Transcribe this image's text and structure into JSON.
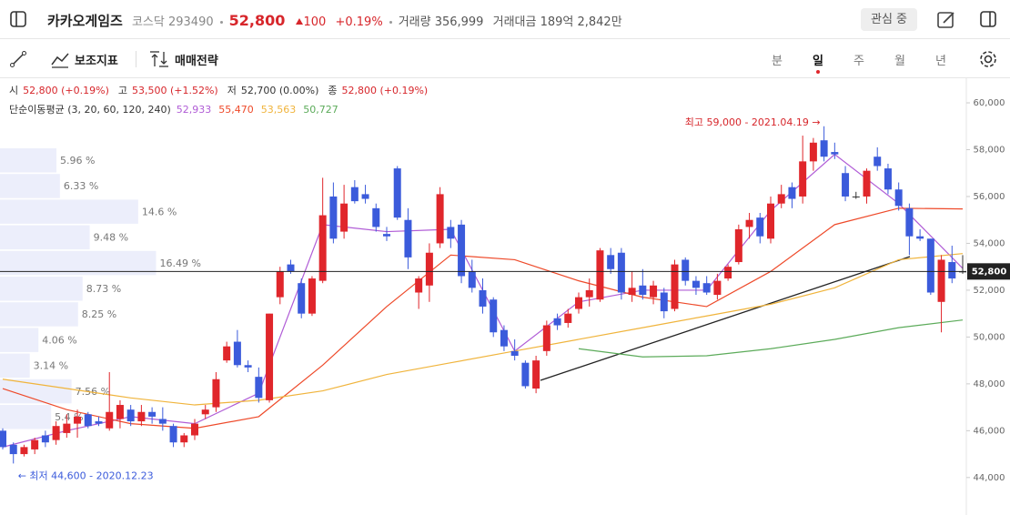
{
  "header": {
    "name": "카카오게임즈",
    "market": "코스닥",
    "code": "293490",
    "price": "52,800",
    "change": "100",
    "change_rate": "+0.19%",
    "volume": "거래량 356,999",
    "amount": "거래대금 189억 2,842만",
    "watch_button": "관심 중"
  },
  "toolbar": {
    "indicators": "보조지표",
    "strategy": "매매전략",
    "periods": [
      "분",
      "일",
      "주",
      "월",
      "년"
    ],
    "active_period": 1
  },
  "chart_data": {
    "type": "candlestick",
    "ohlc_info": [
      {
        "label": "시",
        "value": "52,800 (+0.19%)",
        "color": "#d7262b"
      },
      {
        "label": "고",
        "value": "53,500 (+1.52%)",
        "color": "#d7262b"
      },
      {
        "label": "저",
        "value": "52,700 (0.00%)",
        "color": "#333333"
      },
      {
        "label": "종",
        "value": "52,800 (+0.19%)",
        "color": "#d7262b"
      }
    ],
    "ma_label": "단순이동평균 (3, 20, 60, 120, 240)",
    "ma_series": [
      {
        "color": "#b05cd6",
        "value_label": "52,933",
        "values": [
          45300,
          46000,
          46600,
          46300,
          47600,
          54800,
          54500,
          54600,
          49400,
          51500,
          52000,
          52000,
          55400,
          57800,
          55700,
          52933
        ]
      },
      {
        "color": "#ee4a2a",
        "value_label": "55,470",
        "values": [
          47800,
          46900,
          46300,
          46100,
          46600,
          48800,
          51300,
          53500,
          53300,
          52400,
          51700,
          51300,
          52800,
          54800,
          55500,
          55470
        ]
      },
      {
        "color": "#f0b43c",
        "value_label": "53,563",
        "values": [
          48200,
          47800,
          47400,
          47100,
          47300,
          47700,
          48400,
          48900,
          49400,
          49900,
          50400,
          50900,
          51400,
          52100,
          53300,
          53563
        ]
      },
      {
        "color": "#5cab5a",
        "value_label": "50,727",
        "values": [
          null,
          null,
          null,
          null,
          null,
          null,
          null,
          null,
          null,
          49500,
          49150,
          49200,
          49500,
          49900,
          50400,
          50727
        ]
      }
    ],
    "up_color": "#e0262b",
    "down_color": "#3b5bdb",
    "flat_color": "#333333",
    "open": [
      46000,
      45400,
      45000,
      45200,
      45800,
      45600,
      45900,
      46300,
      46700,
      46400,
      46100,
      46500,
      46900,
      46400,
      46800,
      46500,
      46200,
      45500,
      45800,
      46700,
      47000,
      49000,
      49800,
      48800,
      48300,
      47300,
      51700,
      53100,
      52300,
      51000,
      52400,
      56000,
      54500,
      56400,
      56100,
      55500,
      54400,
      57200,
      55000,
      51900,
      52200,
      54000,
      54700,
      54800,
      52800,
      52000,
      51600,
      50300,
      49400,
      48900,
      47800,
      49400,
      50800,
      50600,
      51200,
      51700,
      51600,
      53500,
      53600,
      51800,
      52200,
      51700,
      51900,
      51200,
      53300,
      52400,
      52300,
      51800,
      52500,
      53200,
      54700,
      55100,
      54200,
      55700,
      56400,
      56000,
      57500,
      58400,
      57900,
      57000,
      56000,
      56000,
      57700,
      57200,
      56300,
      55500,
      54300,
      54200,
      51500,
      53200,
      52800
    ],
    "high": [
      46100,
      45500,
      45400,
      45700,
      46000,
      46400,
      46700,
      46900,
      46800,
      46600,
      48500,
      47300,
      47100,
      47100,
      47000,
      47000,
      46300,
      45900,
      46500,
      47100,
      48500,
      49800,
      50300,
      49000,
      48700,
      51000,
      53000,
      53300,
      52500,
      52600,
      56800,
      56600,
      56500,
      56700,
      56500,
      55700,
      54700,
      57300,
      55500,
      52600,
      54000,
      56400,
      55000,
      55000,
      53300,
      52500,
      51700,
      50500,
      49900,
      49000,
      49200,
      50700,
      51000,
      51200,
      51900,
      52500,
      53800,
      53800,
      53800,
      52800,
      52900,
      52400,
      52100,
      53300,
      53400,
      52600,
      52600,
      52700,
      53100,
      54800,
      55300,
      55300,
      56000,
      56500,
      56600,
      58600,
      58500,
      59000,
      58300,
      57300,
      56200,
      57200,
      58100,
      57400,
      56600,
      55700,
      54600,
      54200,
      53500,
      53900,
      53500
    ],
    "low": [
      45200,
      44600,
      44900,
      45000,
      45300,
      45400,
      45700,
      45700,
      46100,
      46200,
      46000,
      46100,
      46200,
      46200,
      46300,
      46000,
      45300,
      45300,
      45600,
      46500,
      46800,
      48900,
      48700,
      48500,
      47200,
      47200,
      51400,
      52700,
      50800,
      50900,
      52300,
      54000,
      54200,
      55700,
      55700,
      54500,
      54100,
      55000,
      52900,
      51200,
      51500,
      53800,
      53800,
      52300,
      51900,
      51000,
      50000,
      49400,
      49000,
      47800,
      47600,
      49200,
      50300,
      50400,
      51000,
      51300,
      51500,
      52700,
      51600,
      51500,
      51600,
      51400,
      50800,
      51100,
      52200,
      51800,
      51800,
      51600,
      52400,
      53100,
      54200,
      54000,
      54000,
      55500,
      55500,
      55700,
      57100,
      57500,
      57600,
      55800,
      55900,
      55700,
      57100,
      56100,
      55400,
      53500,
      54100,
      51800,
      50200,
      52300,
      52700
    ],
    "close": [
      45300,
      45000,
      45300,
      45600,
      45500,
      46200,
      46300,
      46600,
      46200,
      46300,
      46800,
      47100,
      46400,
      46800,
      46600,
      46300,
      45500,
      45800,
      46300,
      46900,
      48200,
      49600,
      48800,
      48700,
      47400,
      51000,
      52800,
      52800,
      51000,
      52500,
      55200,
      54200,
      55700,
      55800,
      55900,
      54700,
      54300,
      55100,
      53400,
      52500,
      53600,
      56100,
      54200,
      52600,
      52100,
      51300,
      50200,
      49600,
      49200,
      47900,
      49000,
      50500,
      50500,
      51000,
      51700,
      52000,
      53700,
      52900,
      51900,
      52100,
      51800,
      52200,
      51100,
      53100,
      52400,
      52100,
      51900,
      52400,
      53000,
      54600,
      55000,
      54300,
      55700,
      56100,
      55900,
      57500,
      58300,
      57700,
      57800,
      56000,
      56000,
      57100,
      57300,
      56300,
      55600,
      54300,
      54200,
      51900,
      53300,
      52500,
      52800
    ],
    "ylim": [
      42400,
      61050
    ],
    "yticks": [
      {
        "value": 44000,
        "label": "44,000"
      },
      {
        "value": 46000,
        "label": "46,000"
      },
      {
        "value": 48000,
        "label": "48,000"
      },
      {
        "value": 50000,
        "label": "50,000"
      },
      {
        "value": 52000,
        "label": "52,000"
      },
      {
        "value": 54000,
        "label": "54,000"
      },
      {
        "value": 56000,
        "label": "56,000"
      },
      {
        "value": 58000,
        "label": "58,000"
      },
      {
        "value": 60000,
        "label": "60,000"
      }
    ],
    "current_price": {
      "value": 52800,
      "label": "52,800"
    },
    "high_annotation": "최고 59,000 - 2021.04.19 →",
    "low_annotation": "← 최저 44,600 - 2020.12.23",
    "volume_profile": {
      "color": "#eceefb",
      "values": [
        5.96,
        6.33,
        14.6,
        9.48,
        16.49,
        8.73,
        8.25,
        4.06,
        3.14,
        7.56,
        5.4
      ],
      "value_labels": [
        "5.96 %",
        "6.33 %",
        "14.6 %",
        "9.48 %",
        "16.49 %",
        "8.73 %",
        "8.25 %",
        "4.06 %",
        "3.14 %",
        "7.56 %",
        "5.4 %"
      ]
    }
  }
}
